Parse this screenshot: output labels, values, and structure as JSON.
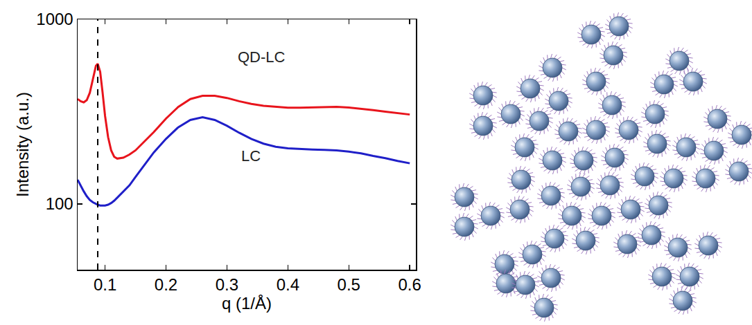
{
  "chart_data": {
    "type": "line",
    "x_label": "q (1/Å)",
    "y_label": "Intensity (a.u.)",
    "log": "y",
    "grid": false,
    "xlim": [
      0.055,
      0.61
    ],
    "ylim": [
      44,
      1000
    ],
    "xticks": [
      0.1,
      0.2,
      0.3,
      0.4,
      0.5,
      0.6
    ],
    "yticks": [
      100,
      1000
    ],
    "x": [
      0.055,
      0.06,
      0.065,
      0.07,
      0.075,
      0.08,
      0.085,
      0.088,
      0.092,
      0.096,
      0.1,
      0.105,
      0.11,
      0.115,
      0.12,
      0.13,
      0.14,
      0.15,
      0.16,
      0.18,
      0.2,
      0.22,
      0.24,
      0.26,
      0.28,
      0.3,
      0.32,
      0.34,
      0.36,
      0.38,
      0.4,
      0.42,
      0.44,
      0.46,
      0.48,
      0.5,
      0.52,
      0.54,
      0.56,
      0.58,
      0.6
    ],
    "series": [
      {
        "name": "QD-LC",
        "color": "#e8141c",
        "values": [
          370,
          360,
          355,
          365,
          400,
          470,
          560,
          575,
          520,
          400,
          300,
          230,
          195,
          180,
          176,
          178,
          185,
          195,
          210,
          245,
          290,
          335,
          370,
          385,
          385,
          375,
          360,
          348,
          340,
          335,
          332,
          332,
          334,
          336,
          336,
          333,
          328,
          322,
          316,
          310,
          305
        ]
      },
      {
        "name": "LC",
        "color": "#1f1fc8",
        "values": [
          135,
          125,
          117,
          110,
          105,
          102,
          100,
          99,
          98,
          98,
          98,
          99,
          101,
          104,
          108,
          116,
          126,
          140,
          155,
          190,
          225,
          260,
          285,
          295,
          285,
          265,
          243,
          225,
          212,
          204,
          200,
          198,
          197,
          196,
          195,
          192,
          188,
          182,
          177,
          171,
          166
        ]
      }
    ],
    "reference_line": {
      "x": 0.088,
      "line_style": "dashed"
    }
  }
}
